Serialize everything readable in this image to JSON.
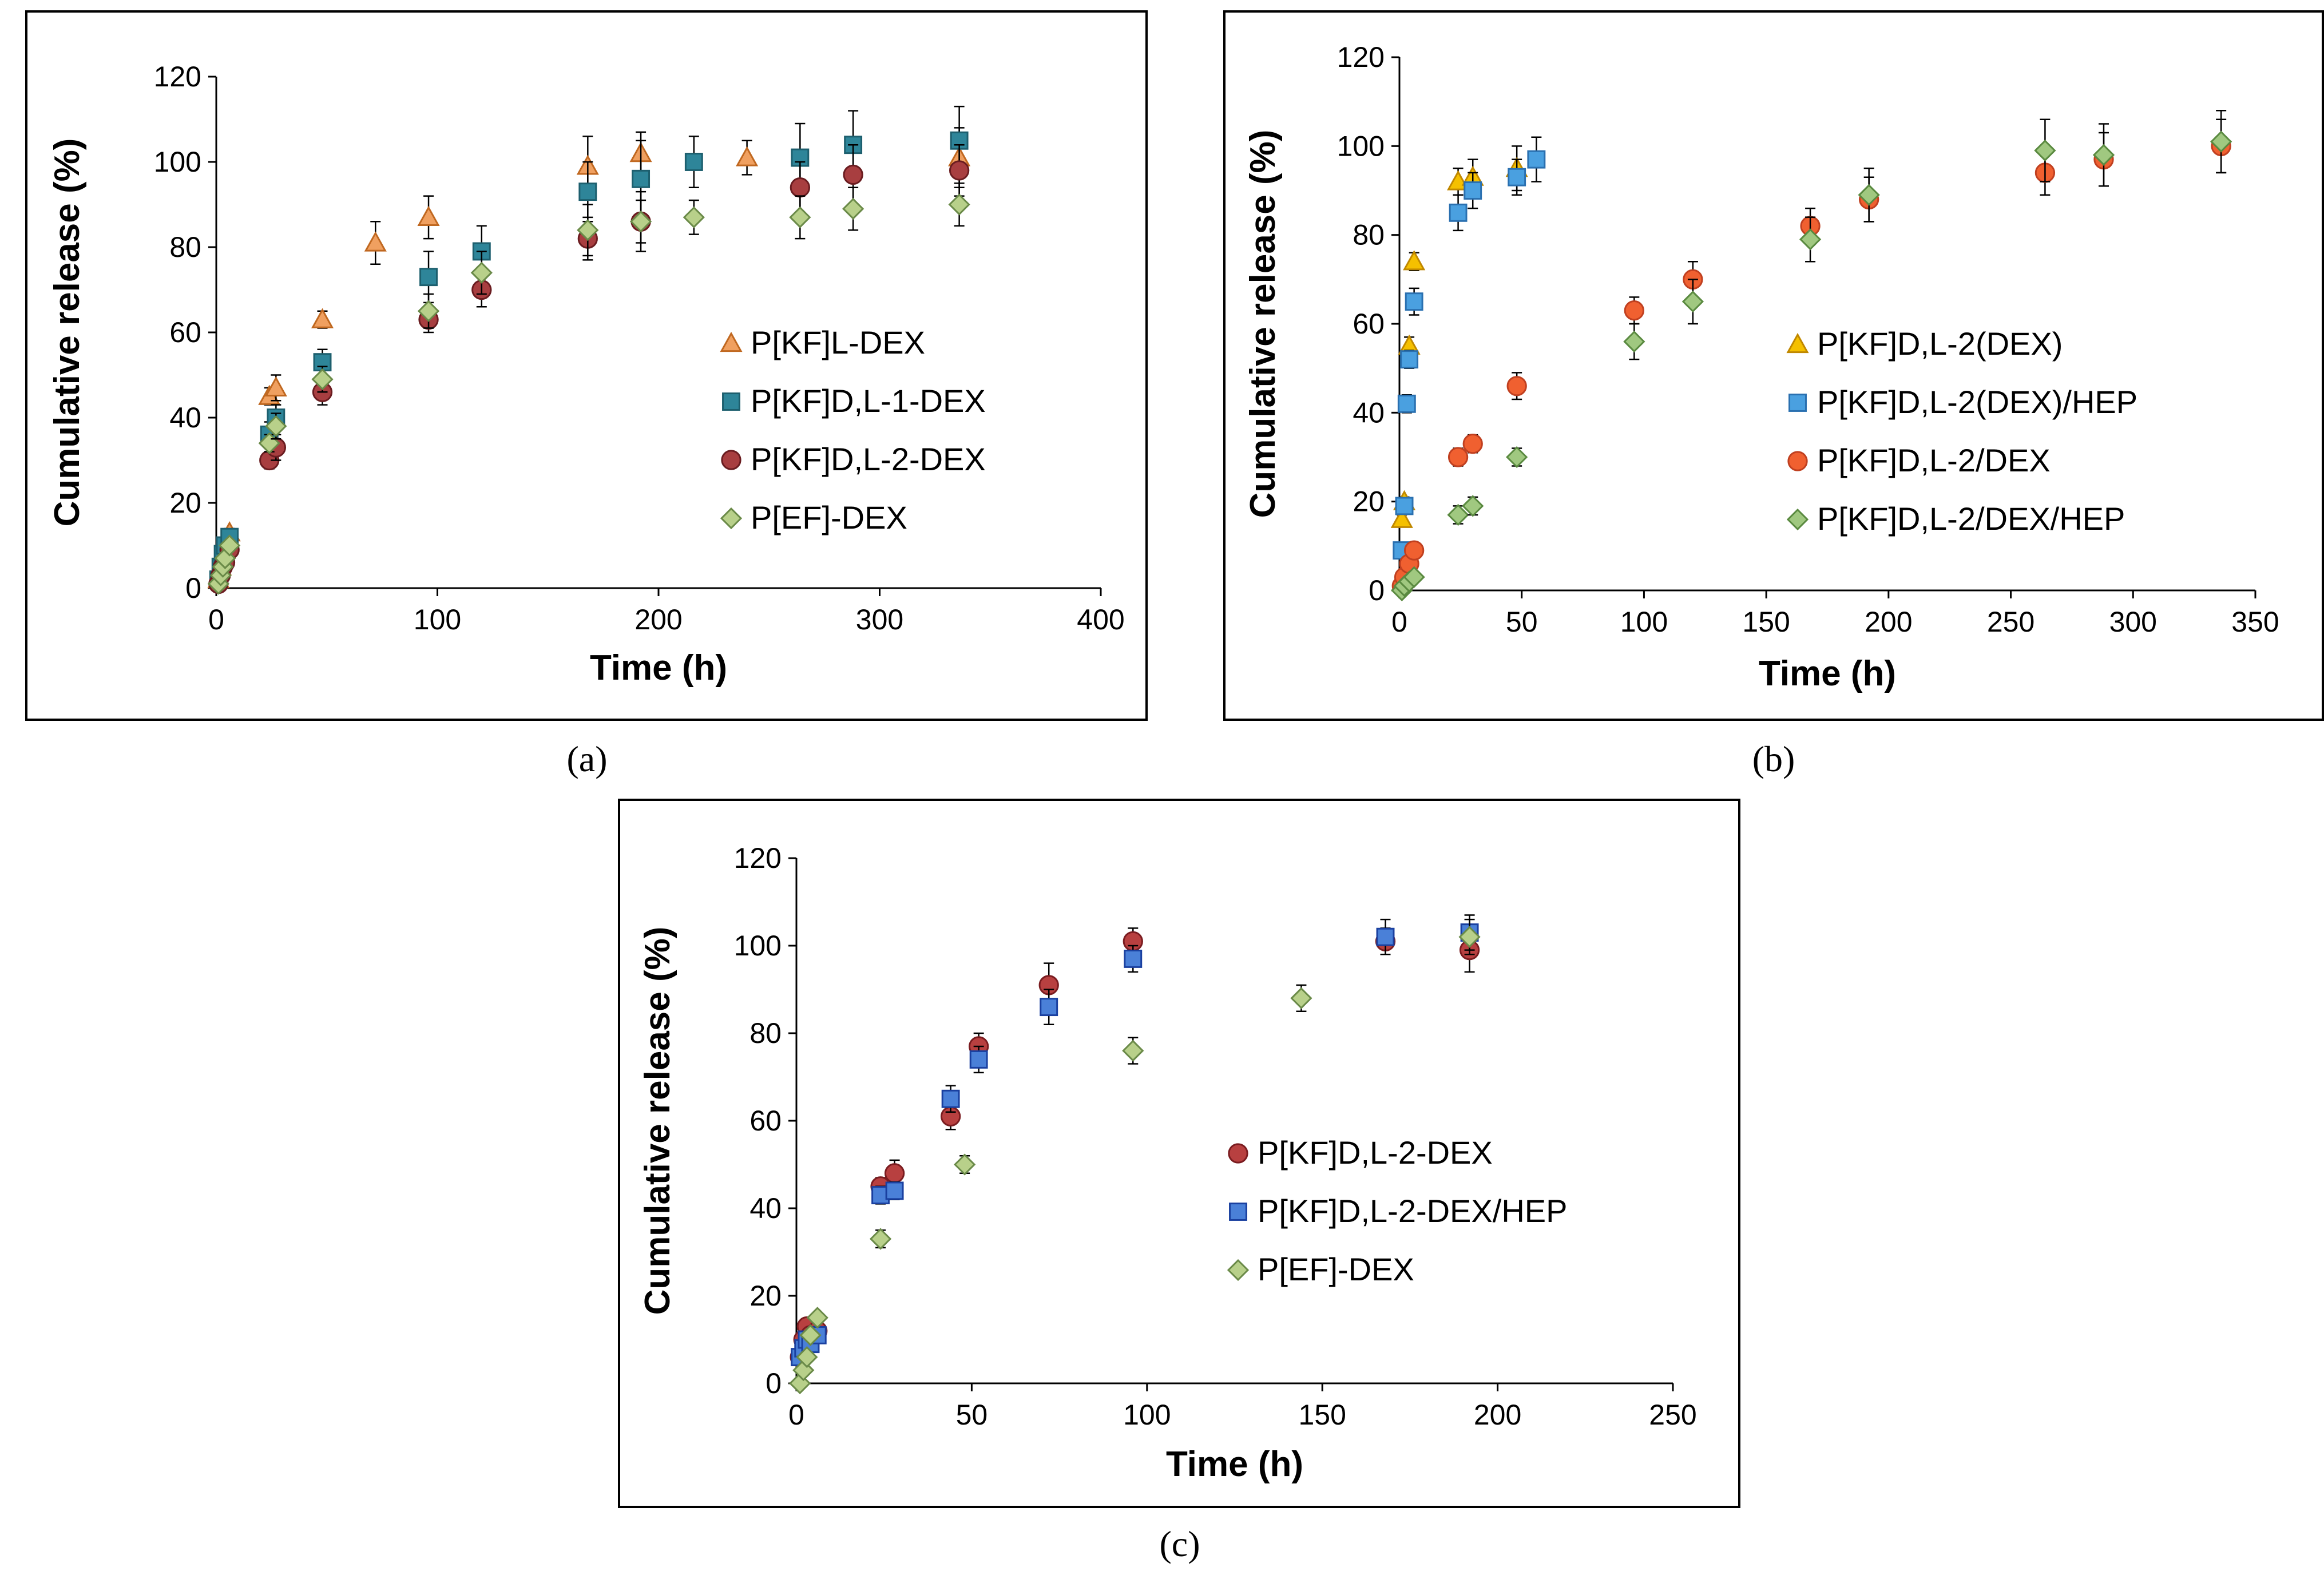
{
  "figure": {
    "captions": [
      "(a)",
      "(b)",
      "(c)"
    ]
  },
  "chart_data": [
    {
      "id": "a",
      "type": "scatter",
      "xlabel": "Time (h)",
      "ylabel": "Cumulative release (%)",
      "xlim": [
        0,
        400
      ],
      "ylim": [
        0,
        120
      ],
      "xticks": [
        0,
        100,
        200,
        300,
        400
      ],
      "yticks": [
        0,
        20,
        40,
        60,
        80,
        100,
        120
      ],
      "legend_position": "center-right",
      "series": [
        {
          "name": "P[KF]L-DEX",
          "marker": "triangle",
          "color": "#f0a060",
          "stroke": "#c06820",
          "x": [
            1,
            2,
            3,
            4,
            6,
            24,
            27,
            48,
            72,
            96,
            168,
            192,
            240,
            336
          ],
          "y": [
            2,
            5,
            8,
            10,
            13,
            45,
            47,
            63,
            81,
            87,
            99,
            102,
            101,
            101
          ],
          "err": [
            1,
            1,
            1,
            1,
            1,
            2,
            3,
            2,
            5,
            5,
            7,
            5,
            4,
            7
          ]
        },
        {
          "name": "P[KF]D,L-1-DEX",
          "marker": "square",
          "color": "#2e8599",
          "stroke": "#1d5f6e",
          "x": [
            1,
            2,
            3,
            4,
            6,
            24,
            27,
            48,
            96,
            120,
            168,
            192,
            216,
            264,
            288,
            336
          ],
          "y": [
            2,
            5,
            8,
            10,
            12,
            36,
            40,
            53,
            73,
            79,
            93,
            96,
            100,
            101,
            104,
            105
          ],
          "err": [
            1,
            1,
            1,
            1,
            1,
            3,
            3,
            3,
            6,
            6,
            7,
            9,
            6,
            8,
            8,
            8
          ]
        },
        {
          "name": "P[KF]D,L-2-DEX",
          "marker": "circle",
          "color": "#a83e40",
          "stroke": "#6a1c20",
          "x": [
            1,
            2,
            3,
            4,
            6,
            24,
            27,
            48,
            96,
            120,
            168,
            192,
            264,
            288,
            336
          ],
          "y": [
            1,
            3,
            5,
            6,
            9,
            30,
            33,
            46,
            63,
            70,
            82,
            86,
            94,
            97,
            98
          ],
          "err": [
            1,
            1,
            1,
            1,
            1,
            2,
            3,
            3,
            3,
            4,
            5,
            5,
            6,
            7,
            6
          ]
        },
        {
          "name": "P[EF]-DEX",
          "marker": "diamond",
          "color": "#b8d08a",
          "stroke": "#6a8a48",
          "x": [
            1,
            2,
            3,
            4,
            6,
            24,
            27,
            48,
            96,
            120,
            168,
            192,
            216,
            264,
            288,
            336
          ],
          "y": [
            1,
            3,
            5,
            7,
            10,
            34,
            38,
            49,
            65,
            74,
            84,
            86,
            87,
            87,
            89,
            90
          ],
          "err": [
            1,
            1,
            1,
            1,
            1,
            2,
            3,
            3,
            4,
            5,
            6,
            7,
            4,
            5,
            5,
            5
          ]
        }
      ]
    },
    {
      "id": "b",
      "type": "scatter",
      "xlabel": "Time (h)",
      "ylabel": "Cumulative release (%)",
      "xlim": [
        0,
        350
      ],
      "ylim": [
        0,
        120
      ],
      "xticks": [
        0,
        50,
        100,
        150,
        200,
        250,
        300,
        350
      ],
      "yticks": [
        0,
        20,
        40,
        60,
        80,
        100,
        120
      ],
      "legend_position": "center-right",
      "series": [
        {
          "name": "P[KF]D,L-2(DEX)",
          "marker": "triangle",
          "color": "#f5c000",
          "stroke": "#c08800",
          "x": [
            1,
            2,
            4,
            6,
            24,
            30,
            48
          ],
          "y": [
            16,
            20,
            55,
            74,
            92,
            93,
            95
          ],
          "err": [
            1,
            1,
            2,
            2,
            3,
            4,
            5
          ]
        },
        {
          "name": "P[KF]D,L-2(DEX)/HEP",
          "marker": "square",
          "color": "#4aa0e0",
          "stroke": "#2a70b0",
          "x": [
            1,
            2,
            3,
            4,
            6,
            24,
            30,
            48,
            56
          ],
          "y": [
            9,
            19,
            42,
            52,
            65,
            85,
            90,
            93,
            97
          ],
          "err": [
            1,
            1,
            2,
            2,
            3,
            4,
            4,
            4,
            5
          ]
        },
        {
          "name": "P[KF]D,L-2/DEX",
          "marker": "circle",
          "color": "#f06030",
          "stroke": "#c04020",
          "x": [
            1,
            2,
            4,
            6,
            24,
            30,
            48,
            96,
            120,
            168,
            192,
            264,
            288,
            336
          ],
          "y": [
            1,
            3,
            6,
            9,
            30,
            33,
            46,
            63,
            70,
            82,
            88,
            94,
            97,
            100
          ],
          "err": [
            1,
            1,
            1,
            1,
            2,
            2,
            3,
            3,
            4,
            4,
            5,
            5,
            6,
            6
          ]
        },
        {
          "name": "P[KF]D,L-2/DEX/HEP",
          "marker": "diamond",
          "color": "#a0c880",
          "stroke": "#5a8a40",
          "x": [
            1,
            2,
            4,
            6,
            24,
            30,
            48,
            96,
            120,
            168,
            192,
            264,
            288,
            336
          ],
          "y": [
            0,
            1,
            2,
            3,
            17,
            19,
            30,
            56,
            65,
            79,
            89,
            99,
            98,
            101
          ],
          "err": [
            1,
            1,
            1,
            1,
            2,
            2,
            2,
            4,
            5,
            5,
            6,
            7,
            7,
            7
          ]
        }
      ]
    },
    {
      "id": "c",
      "type": "scatter",
      "xlabel": "Time (h)",
      "ylabel": "Cumulative release (%)",
      "xlim": [
        0,
        250
      ],
      "ylim": [
        0,
        120
      ],
      "xticks": [
        0,
        50,
        100,
        150,
        200,
        250
      ],
      "yticks": [
        0,
        20,
        40,
        60,
        80,
        100,
        120
      ],
      "legend_position": "center-right",
      "series": [
        {
          "name": "P[KF]D,L-2-DEX",
          "marker": "circle",
          "color": "#b84040",
          "stroke": "#7a1c20",
          "x": [
            1,
            2,
            3,
            4,
            6,
            24,
            28,
            44,
            52,
            72,
            96,
            168,
            192
          ],
          "y": [
            6,
            10,
            13,
            11,
            12,
            45,
            48,
            61,
            77,
            91,
            101,
            101,
            99
          ],
          "err": [
            1,
            1,
            1,
            1,
            1,
            2,
            3,
            3,
            3,
            5,
            3,
            3,
            5
          ]
        },
        {
          "name": "P[KF]D,L-2-DEX/HEP",
          "marker": "square",
          "color": "#4a80d8",
          "stroke": "#1a40a0",
          "x": [
            1,
            2,
            3,
            4,
            6,
            24,
            28,
            44,
            52,
            72,
            96,
            168,
            192
          ],
          "y": [
            6,
            8,
            10,
            9,
            11,
            43,
            44,
            65,
            74,
            86,
            97,
            102,
            103
          ],
          "err": [
            1,
            1,
            1,
            1,
            1,
            2,
            2,
            3,
            3,
            4,
            3,
            4,
            4
          ]
        },
        {
          "name": "P[EF]-DEX",
          "marker": "diamond",
          "color": "#b8d08a",
          "stroke": "#6a8a48",
          "x": [
            1,
            2,
            3,
            4,
            6,
            24,
            48,
            96,
            144,
            192
          ],
          "y": [
            0,
            3,
            6,
            11,
            15,
            33,
            50,
            76,
            88,
            102
          ],
          "err": [
            1,
            1,
            1,
            1,
            1,
            2,
            2,
            3,
            3,
            4
          ]
        }
      ]
    }
  ]
}
